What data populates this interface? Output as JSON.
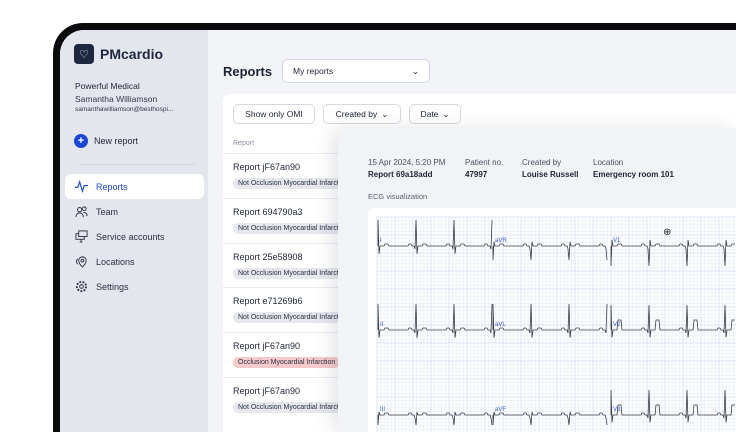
{
  "brand": {
    "name": "PMcardio"
  },
  "account": {
    "org": "Powerful Medical",
    "user": "Samantha Williamson",
    "email": "samanthawilliamson@besthospi..."
  },
  "sidebar": {
    "new_report": "New report",
    "items": [
      {
        "label": "Reports",
        "icon": "heartbeat-icon",
        "active": true
      },
      {
        "label": "Team",
        "icon": "team-icon"
      },
      {
        "label": "Service accounts",
        "icon": "monitor-icon"
      },
      {
        "label": "Locations",
        "icon": "location-icon"
      },
      {
        "label": "Settings",
        "icon": "gear-icon"
      }
    ]
  },
  "header": {
    "title": "Reports",
    "dropdown": "My reports"
  },
  "filters": {
    "omi": "Show only OMI",
    "created_by": "Created by",
    "date": "Date"
  },
  "list": {
    "column": "Report",
    "rows": [
      {
        "title": "Report jF67an90",
        "badge": "Not Occlusion Myocardial Infarction",
        "omi": false
      },
      {
        "title": "Report 694790a3",
        "badge": "Not Occlusion Myocardial Infarction",
        "omi": false
      },
      {
        "title": "Report 25e58908",
        "badge": "Not Occlusion Myocardial Infarction",
        "omi": false
      },
      {
        "title": "Report e71269b6",
        "badge": "Not Occlusion Myocardial Infarction",
        "omi": false
      },
      {
        "title": "Report jF67an90",
        "badge": "Occlusion Myocardial Infarction",
        "omi": true
      },
      {
        "title": "Report jF67an90",
        "badge": "Not Occlusion Myocardial Infarction",
        "omi": false
      }
    ]
  },
  "detail": {
    "date": "15 Apr 2024, 5:20 PM",
    "report": "Report 69a18add",
    "patient_label": "Patient no.",
    "patient": "47997",
    "created_label": "Created by",
    "created": "Louise Russell",
    "location_label": "Location",
    "location": "Emergency room 101",
    "ecg_label": "ECG visualization",
    "leads": [
      [
        "I",
        "aVR",
        "V1"
      ],
      [
        "II",
        "aVL",
        "V2"
      ],
      [
        "III",
        "aVF",
        "V3"
      ]
    ]
  },
  "colors": {
    "accent": "#1b46d6",
    "omi": "#f6caca",
    "grid": "#c9d6ee",
    "lead_label": "#3556d8"
  }
}
